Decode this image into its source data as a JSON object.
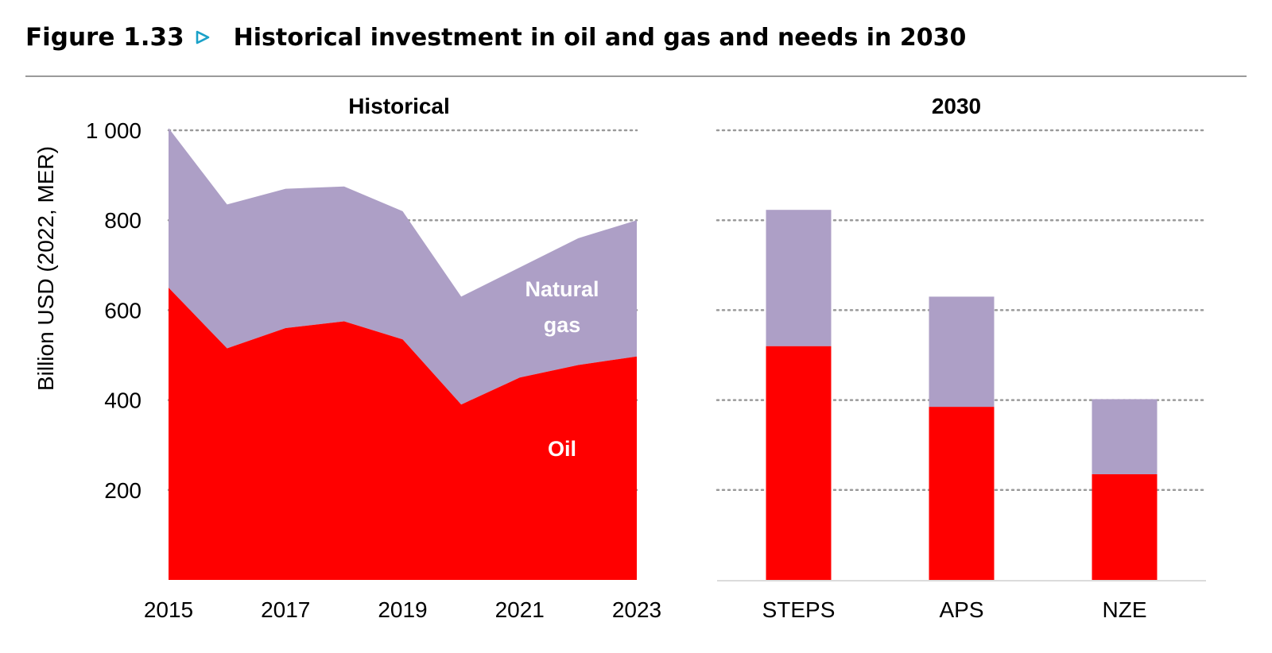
{
  "figure": {
    "label": "Figure 1.33",
    "title": "Historical investment in oil and gas and needs in 2030"
  },
  "colors": {
    "oil": "#ff0000",
    "natural_gas": "#ad9fc6",
    "marker": "#1aa1c8",
    "grid": "#9a9a9a"
  },
  "chart_data": [
    {
      "type": "area",
      "stacked": true,
      "title": "Historical",
      "ylabel": "Billion USD (2022, MER)",
      "ylim": [
        0,
        1000
      ],
      "yticks": [
        200,
        400,
        600,
        800,
        1000
      ],
      "ytick_labels": [
        "200",
        "400",
        "600",
        "800",
        "1 000"
      ],
      "x": [
        2015,
        2016,
        2017,
        2018,
        2019,
        2020,
        2021,
        2022,
        2023
      ],
      "xtick_labels": [
        "2015",
        "2017",
        "2019",
        "2021",
        "2023"
      ],
      "grid": "horizontal dotted",
      "series": [
        {
          "name": "Oil",
          "values": [
            650,
            515,
            560,
            575,
            535,
            390,
            450,
            478,
            497
          ]
        },
        {
          "name": "Natural gas",
          "values": [
            355,
            320,
            310,
            300,
            285,
            240,
            245,
            282,
            303
          ]
        }
      ],
      "series_labels": {
        "oil": "Oil",
        "natural_gas_line1": "Natural",
        "natural_gas_line2": "gas"
      }
    },
    {
      "type": "bar",
      "stacked": true,
      "title": "2030",
      "ylim": [
        0,
        1000
      ],
      "categories": [
        "STEPS",
        "APS",
        "NZE"
      ],
      "grid": "horizontal dotted",
      "series": [
        {
          "name": "Oil",
          "values": [
            520,
            385,
            235
          ]
        },
        {
          "name": "Natural gas",
          "values": [
            303,
            245,
            167
          ]
        }
      ]
    }
  ]
}
